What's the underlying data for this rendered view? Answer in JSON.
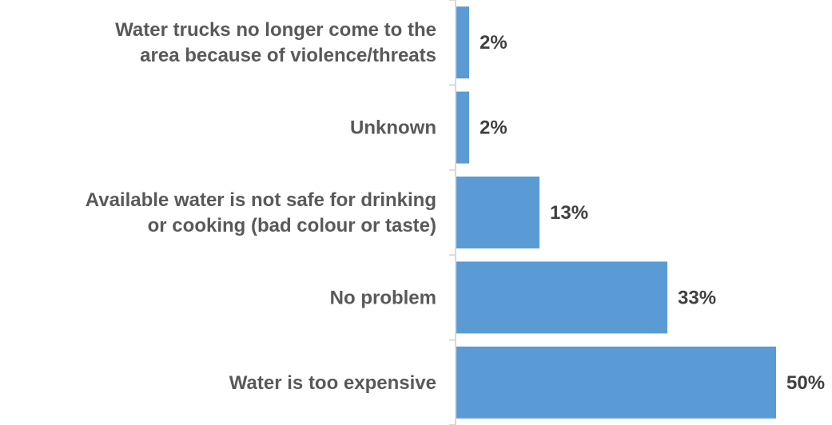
{
  "chart_data": {
    "type": "bar",
    "orientation": "horizontal",
    "categories": [
      "Water trucks no longer come to the area because of violence/threats",
      "Unknown",
      "Available water is not safe for drinking or cooking (bad colour or taste)",
      "No problem",
      "Water is too expensive"
    ],
    "category_lines": [
      [
        "Water trucks no longer come to the",
        "area because of violence/threats"
      ],
      [
        "Unknown"
      ],
      [
        "Available water is not safe for drinking",
        "or cooking (bad colour or taste)"
      ],
      [
        "No problem"
      ],
      [
        "Water is too expensive"
      ]
    ],
    "values": [
      2,
      2,
      13,
      33,
      50
    ],
    "value_labels": [
      "2%",
      "2%",
      "13%",
      "33%",
      "50%"
    ],
    "xlim": [
      0,
      50
    ],
    "bar_color": "#5b9bd5",
    "axis_color": "#d9d9d9",
    "grid": false,
    "legend": "none"
  }
}
